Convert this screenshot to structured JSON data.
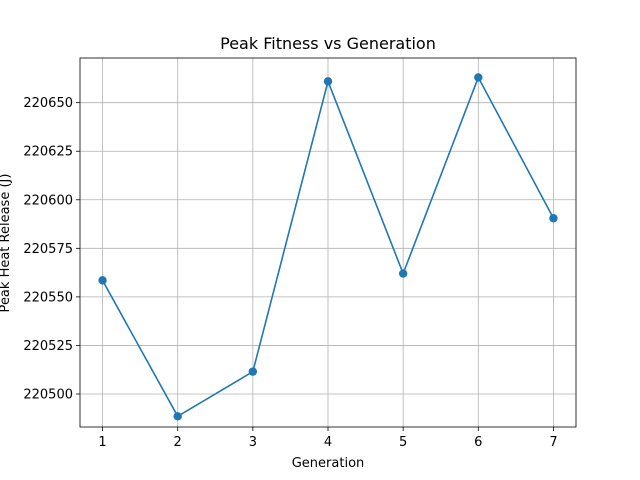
{
  "chart_data": {
    "type": "line",
    "title": "Peak Fitness vs Generation",
    "xlabel": "Generation",
    "ylabel": "Peak Heat Release (J)",
    "x": [
      1,
      2,
      3,
      4,
      5,
      6,
      7
    ],
    "series": [
      {
        "values": [
          220558.5,
          220488.5,
          220511.5,
          220661,
          220562,
          220663,
          220590.5
        ],
        "color": "#1f77b4",
        "marker": "circle"
      }
    ],
    "xlim": [
      0.7,
      7.3
    ],
    "ylim": [
      220483,
      220673
    ],
    "xticks": [
      "1",
      "2",
      "3",
      "4",
      "5",
      "6",
      "7"
    ],
    "yticks": [
      "220500",
      "220525",
      "220550",
      "220575",
      "220600",
      "220625",
      "220650"
    ],
    "grid": true
  }
}
